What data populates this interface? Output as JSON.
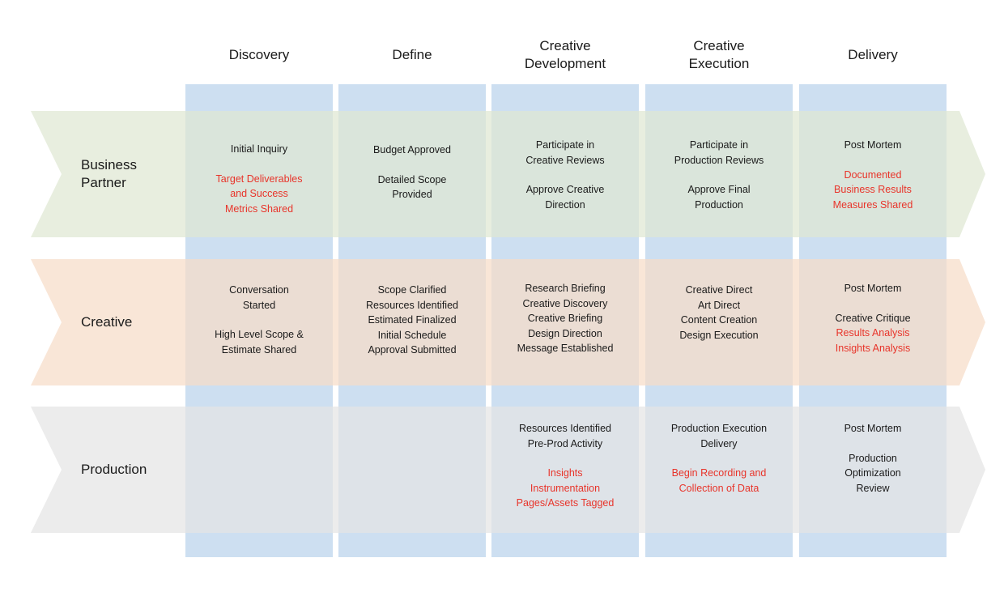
{
  "phases": [
    {
      "id": "discovery",
      "label": "Discovery"
    },
    {
      "id": "define",
      "label": "Define"
    },
    {
      "id": "creative-development",
      "label": "Creative\nDevelopment"
    },
    {
      "id": "creative-execution",
      "label": "Creative\nExecution"
    },
    {
      "id": "delivery",
      "label": "Delivery"
    }
  ],
  "lanes": [
    {
      "id": "business-partner",
      "label": "Business\nPartner",
      "color": "#dfe8d3"
    },
    {
      "id": "creative",
      "label": "Creative",
      "color": "#f6dcc7"
    },
    {
      "id": "production",
      "label": "Production",
      "color": "#e4e4e4"
    }
  ],
  "colors": {
    "column": "#cddff1",
    "text": "#1a1a1a",
    "highlight": "#e8342a"
  },
  "cells": {
    "business-partner": {
      "discovery": [
        {
          "text": "Initial Inquiry",
          "style": "black"
        },
        {
          "text": "Target Deliverables\nand Success\nMetrics Shared",
          "style": "red"
        }
      ],
      "define": [
        {
          "text": "Budget Approved",
          "style": "black"
        },
        {
          "text": "Detailed Scope\nProvided",
          "style": "black"
        }
      ],
      "creative-development": [
        {
          "text": "Participate in\nCreative Reviews",
          "style": "black"
        },
        {
          "text": "Approve Creative\nDirection",
          "style": "black"
        }
      ],
      "creative-execution": [
        {
          "text": "Participate in\nProduction Reviews",
          "style": "black"
        },
        {
          "text": "Approve Final\nProduction",
          "style": "black"
        }
      ],
      "delivery": [
        {
          "text": "Post Mortem",
          "style": "black"
        },
        {
          "text": "Documented\nBusiness Results\nMeasures Shared",
          "style": "red"
        }
      ]
    },
    "creative": {
      "discovery": [
        {
          "text": "Conversation\nStarted",
          "style": "black"
        },
        {
          "text": "High Level Scope &\nEstimate Shared",
          "style": "black"
        }
      ],
      "define": [
        {
          "text": "Scope Clarified\nResources Identified\nEstimated Finalized\nInitial Schedule\nApproval Submitted",
          "style": "black"
        }
      ],
      "creative-development": [
        {
          "text": "Research Briefing\nCreative Discovery\nCreative Briefing\nDesign Direction\nMessage Established",
          "style": "black"
        }
      ],
      "creative-execution": [
        {
          "text": "Creative Direct\nArt Direct\nContent Creation\nDesign Execution",
          "style": "black"
        }
      ],
      "delivery": [
        {
          "text": "Post Mortem",
          "style": "black"
        },
        {
          "text": "Creative Critique",
          "style": "black"
        },
        {
          "text": "Results Analysis\nInsights Analysis",
          "style": "red",
          "joined": true
        }
      ]
    },
    "production": {
      "discovery": [],
      "define": [],
      "creative-development": [
        {
          "text": "Resources Identified\nPre-Prod Activity",
          "style": "black"
        },
        {
          "text": "Insights\nInstrumentation\nPages/Assets Tagged",
          "style": "red"
        }
      ],
      "creative-execution": [
        {
          "text": "Production Execution\nDelivery",
          "style": "black"
        },
        {
          "text": "Begin Recording and\nCollection of Data",
          "style": "red"
        }
      ],
      "delivery": [
        {
          "text": "Post Mortem",
          "style": "black"
        },
        {
          "text": "Production\nOptimization\nReview",
          "style": "black"
        }
      ]
    }
  }
}
